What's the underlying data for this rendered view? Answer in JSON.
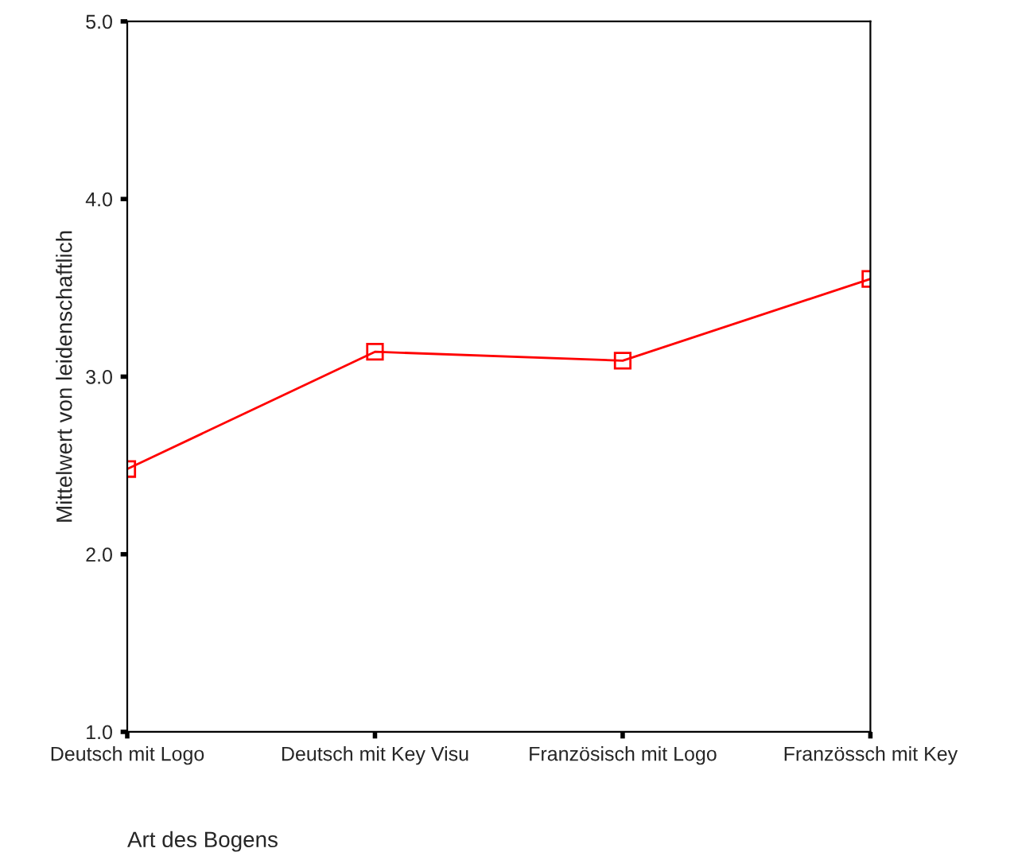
{
  "chart_data": {
    "type": "line",
    "xlabel": "Art des Bogens",
    "ylabel": "Mittelwert von leidenschaftlich",
    "categories": [
      "Deutsch mit Logo",
      "Deutsch mit Key Visu",
      "Französisch mit Logo",
      "Französsch mit Key"
    ],
    "series": [
      {
        "color": "#ff0000",
        "values": [
          2.48,
          3.14,
          3.09,
          3.55
        ]
      }
    ],
    "ylim": [
      1.0,
      5.0
    ],
    "yticks": [
      {
        "value": 1,
        "label": "1.0"
      },
      {
        "value": 2,
        "label": "2.0"
      },
      {
        "value": 3,
        "label": "3.0"
      },
      {
        "value": 4,
        "label": "4.0"
      },
      {
        "value": 5,
        "label": "5.0"
      }
    ],
    "marker": "square",
    "line_style": "solid",
    "grid": false,
    "legend": false
  }
}
